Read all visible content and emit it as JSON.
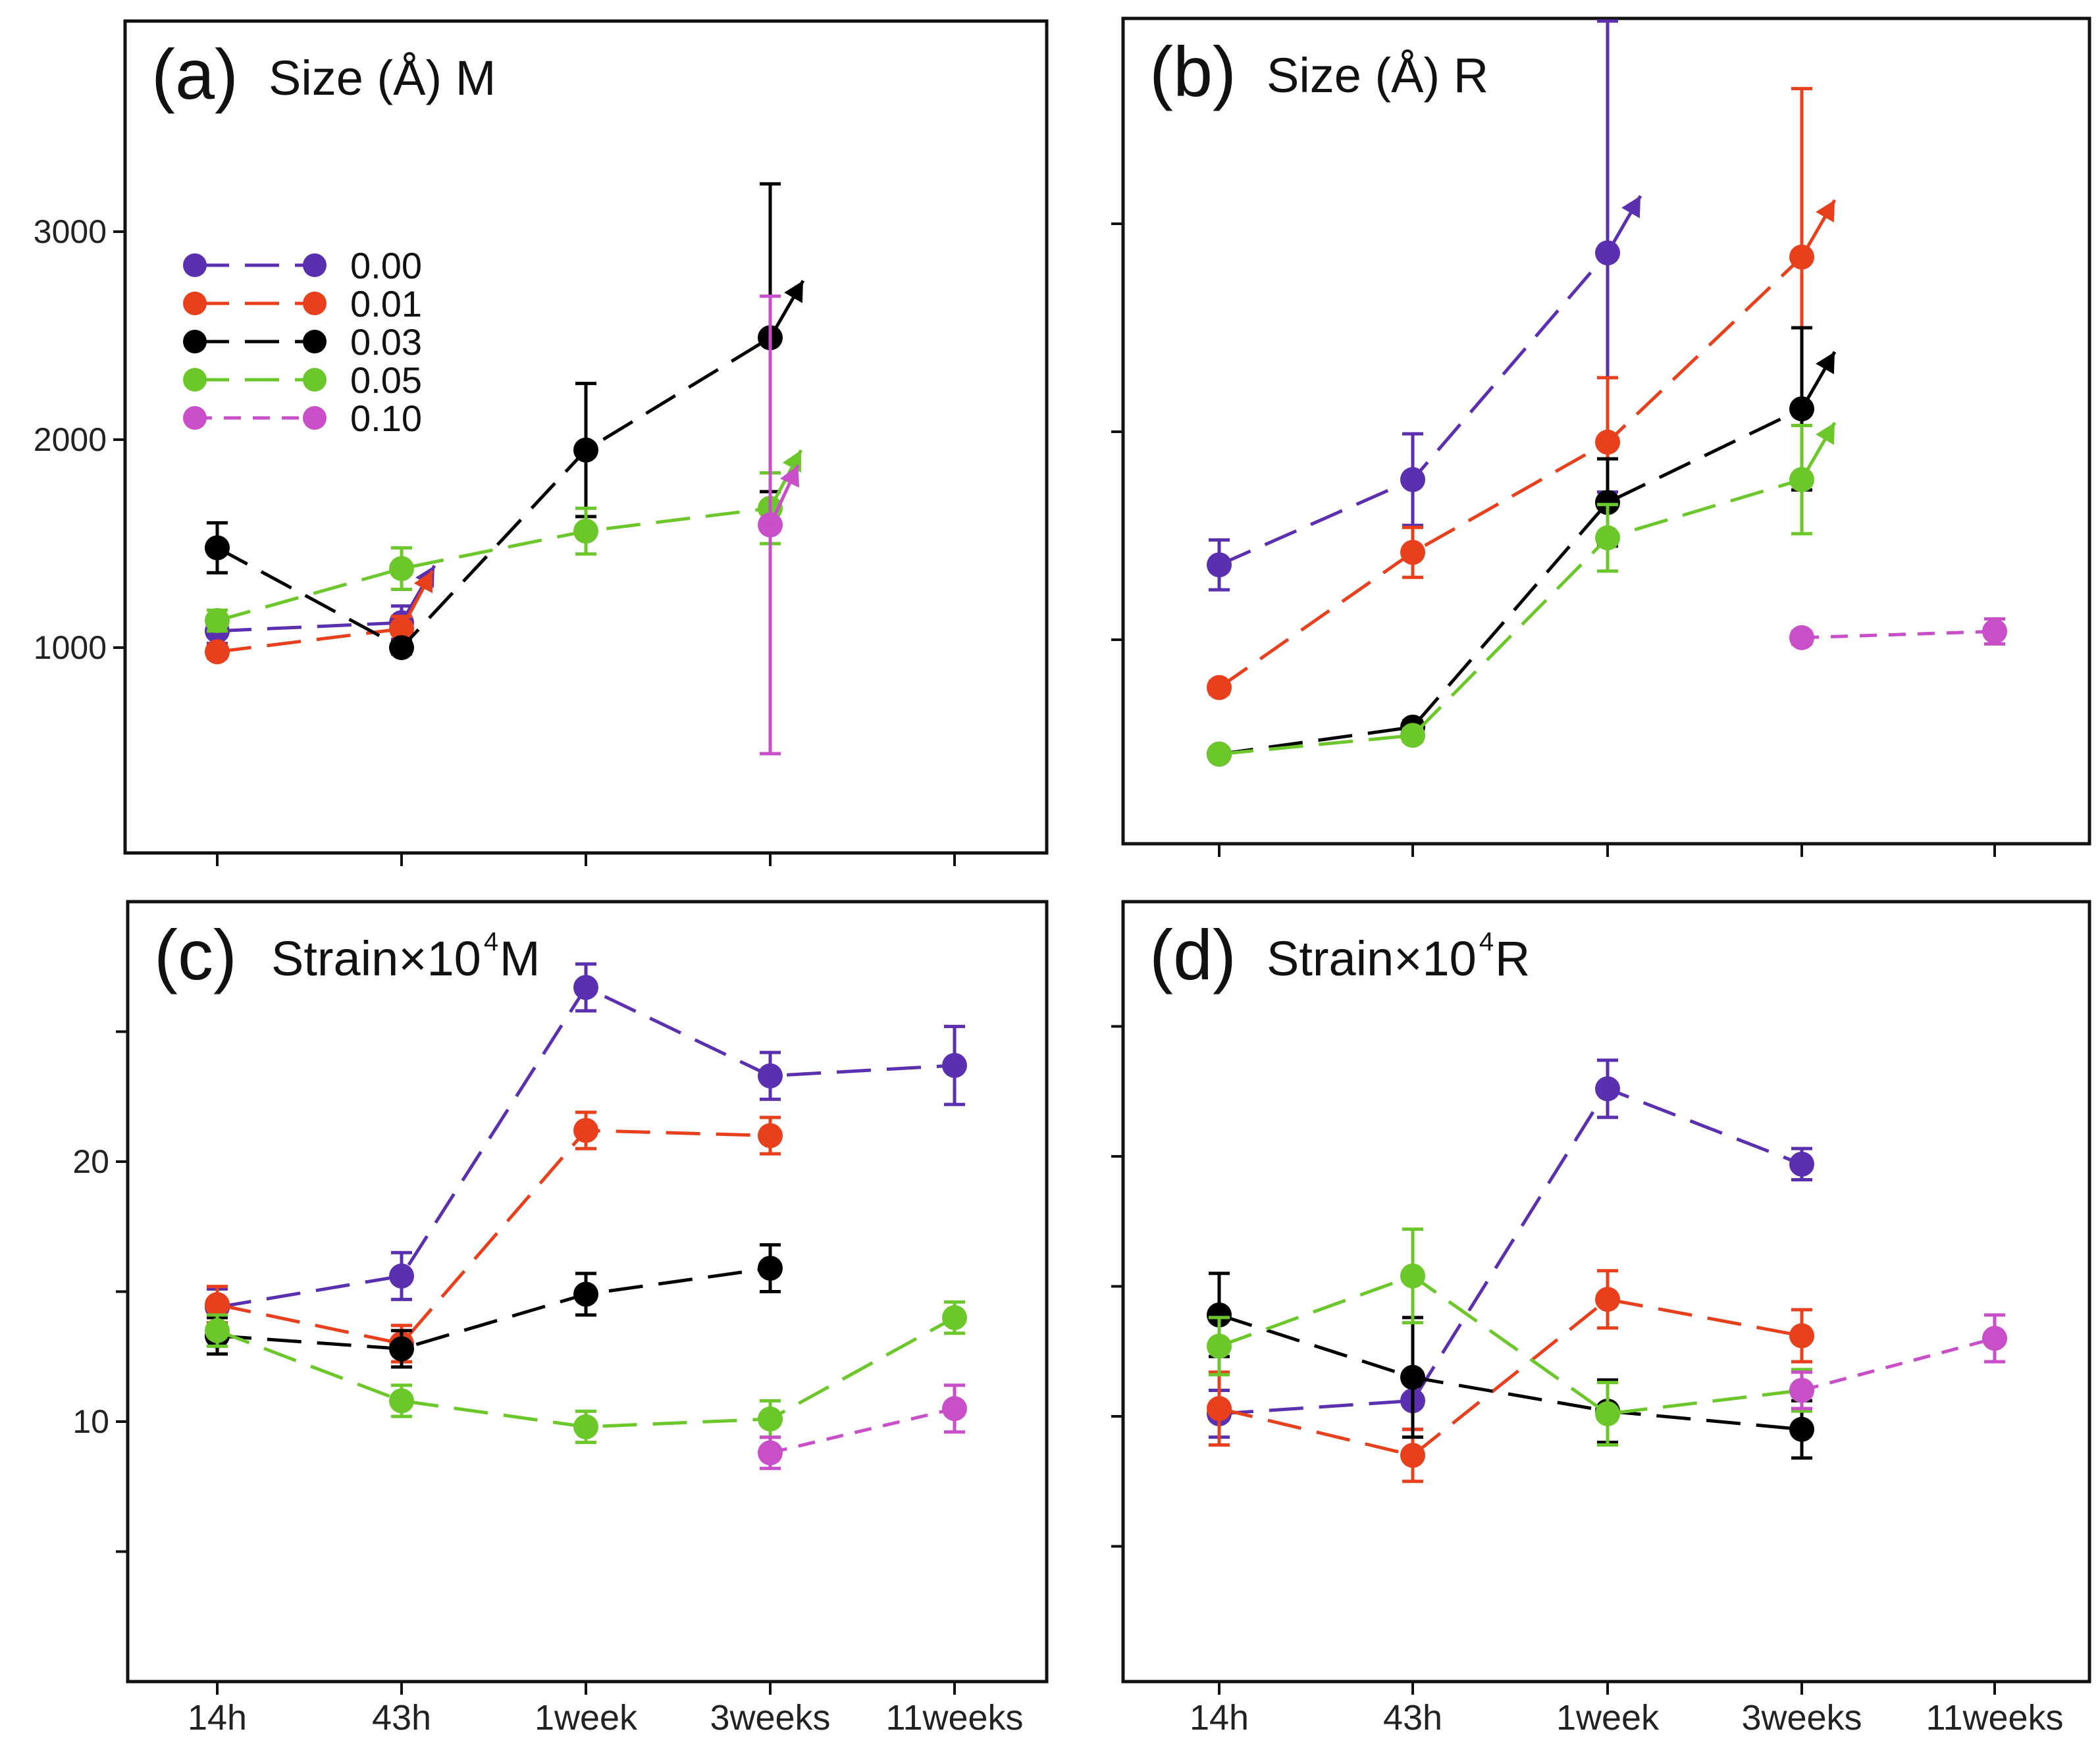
{
  "chart_data": {
    "type": "line",
    "x_categories": [
      "14h",
      "43h",
      "1week",
      "3weeks",
      "11weeks"
    ],
    "legend": {
      "placement": "top-left of panel (a)",
      "entries": [
        {
          "label": "0.00",
          "color": "#5a30b0",
          "dash": "long"
        },
        {
          "label": "0.01",
          "color": "#e8401c",
          "dash": "long"
        },
        {
          "label": "0.03",
          "color": "#000000",
          "dash": "long"
        },
        {
          "label": "0.05",
          "color": "#6cc72a",
          "dash": "long"
        },
        {
          "label": "0.10",
          "color": "#c84fc8",
          "dash": "short"
        }
      ]
    },
    "panels": [
      {
        "id": "a",
        "letter": "(a)",
        "title": "Size (Å) M",
        "ylim": [
          0,
          4000
        ],
        "yticks": [
          1000,
          2000,
          3000
        ],
        "ytick_labels": [
          "1000",
          "2000",
          "3000"
        ],
        "series": [
          {
            "name": "0.00",
            "color": "#5a30b0",
            "x": [
              0,
              1
            ],
            "y": [
              1080,
              1120
            ],
            "err": [
              60,
              80
            ],
            "arrow_from": 1,
            "arrow_angle": -60
          },
          {
            "name": "0.01",
            "color": "#e8401c",
            "x": [
              0,
              1
            ],
            "y": [
              980,
              1090
            ],
            "err": [
              30,
              60
            ],
            "arrow_from": 1,
            "arrow_angle": -62
          },
          {
            "name": "0.03",
            "color": "#000000",
            "x": [
              0,
              1,
              2,
              3
            ],
            "y": [
              1480,
              1000,
              1950,
              2490
            ],
            "err": [
              120,
              30,
              320,
              740
            ],
            "arrow_from": 3,
            "arrow_angle": -60
          },
          {
            "name": "0.05",
            "color": "#6cc72a",
            "x": [
              0,
              1,
              2,
              3
            ],
            "y": [
              1130,
              1380,
              1560,
              1670
            ],
            "err": [
              50,
              100,
              110,
              170
            ],
            "arrow_from": 3,
            "arrow_angle": -62
          },
          {
            "name": "0.10",
            "color": "#c84fc8",
            "x": [
              3
            ],
            "y": [
              1590
            ],
            "err": [
              1100
            ],
            "arrow_from": 3,
            "arrow_angle": -65
          }
        ]
      },
      {
        "id": "b",
        "letter": "(b)",
        "title": "Size (Å) R",
        "ylim": [
          0,
          4000
        ],
        "yticks": [
          1000,
          2000,
          3000
        ],
        "ytick_labels": [],
        "series": [
          {
            "name": "0.00",
            "color": "#5a30b0",
            "x": [
              0,
              1,
              2
            ],
            "y": [
              1360,
              1770,
              2860
            ],
            "err": [
              120,
              220,
              1150
            ],
            "arrow_from": 2,
            "arrow_angle": -60
          },
          {
            "name": "0.01",
            "color": "#e8401c",
            "x": [
              0,
              1,
              2,
              3
            ],
            "y": [
              770,
              1420,
              1950,
              2840
            ],
            "err": [
              30,
              120,
              310,
              810
            ],
            "arrow_from": 3,
            "arrow_angle": -60
          },
          {
            "name": "0.03",
            "color": "#000000",
            "x": [
              0,
              1,
              2,
              3
            ],
            "y": [
              450,
              580,
              1660,
              2110
            ],
            "err": [
              20,
              30,
              210,
              390
            ],
            "arrow_from": 3,
            "arrow_angle": -60
          },
          {
            "name": "0.05",
            "color": "#6cc72a",
            "x": [
              0,
              1,
              2,
              3
            ],
            "y": [
              450,
              540,
              1490,
              1770
            ],
            "err": [
              20,
              30,
              160,
              260
            ],
            "arrow_from": 3,
            "arrow_angle": -60
          },
          {
            "name": "0.10",
            "color": "#c84fc8",
            "x": [
              3,
              4
            ],
            "y": [
              1010,
              1040
            ],
            "err": [
              30,
              60
            ]
          }
        ]
      },
      {
        "id": "c",
        "letter": "(c)",
        "title": "Strain×10",
        "title_sup": "4",
        "title_suffix": " M",
        "ylim": [
          0,
          30
        ],
        "yticks": [
          5,
          10,
          15,
          20,
          25
        ],
        "ytick_labels": [
          "",
          "10",
          "",
          "20",
          ""
        ],
        "series": [
          {
            "name": "0.00",
            "color": "#5a30b0",
            "x": [
              0,
              1,
              2,
              3,
              4
            ],
            "y": [
              14.4,
              15.6,
              26.7,
              23.3,
              23.7
            ],
            "err": [
              0.7,
              0.9,
              0.9,
              0.9,
              1.5
            ]
          },
          {
            "name": "0.01",
            "color": "#e8401c",
            "x": [
              0,
              1,
              2,
              3
            ],
            "y": [
              14.5,
              13.0,
              21.2,
              21.0
            ],
            "err": [
              0.7,
              0.7,
              0.7,
              0.7
            ]
          },
          {
            "name": "0.03",
            "color": "#000000",
            "x": [
              0,
              1,
              2,
              3
            ],
            "y": [
              13.3,
              12.8,
              14.9,
              15.9
            ],
            "err": [
              0.7,
              0.7,
              0.8,
              0.9
            ]
          },
          {
            "name": "0.05",
            "color": "#6cc72a",
            "x": [
              0,
              1,
              2,
              3,
              4
            ],
            "y": [
              13.5,
              10.8,
              9.8,
              10.1,
              14.0
            ],
            "err": [
              0.6,
              0.6,
              0.6,
              0.7,
              0.6
            ]
          },
          {
            "name": "0.10",
            "color": "#c84fc8",
            "x": [
              3,
              4
            ],
            "y": [
              8.8,
              10.5
            ],
            "err": [
              0.6,
              0.9
            ]
          }
        ]
      },
      {
        "id": "d",
        "letter": "(d)",
        "title": "Strain×10",
        "title_sup": "4",
        "title_suffix": " R",
        "ylim": [
          0,
          30
        ],
        "yticks": [
          5,
          10,
          15,
          20,
          25
        ],
        "ytick_labels": [],
        "series": [
          {
            "name": "0.00",
            "color": "#5a30b0",
            "x": [
              0,
              1,
              2,
              3
            ],
            "y": [
              10.1,
              10.6,
              22.6,
              19.7
            ],
            "err": [
              0.9,
              1.1,
              1.1,
              0.6
            ]
          },
          {
            "name": "0.01",
            "color": "#e8401c",
            "x": [
              0,
              1,
              2,
              3
            ],
            "y": [
              10.3,
              8.5,
              14.5,
              13.1
            ],
            "err": [
              1.4,
              1.0,
              1.1,
              1.0
            ]
          },
          {
            "name": "0.03",
            "color": "#000000",
            "x": [
              0,
              1,
              2,
              3
            ],
            "y": [
              13.9,
              11.5,
              10.2,
              9.5
            ],
            "err": [
              1.6,
              2.3,
              1.2,
              1.1
            ]
          },
          {
            "name": "0.05",
            "color": "#6cc72a",
            "x": [
              0,
              1,
              2,
              3
            ],
            "y": [
              12.7,
              15.4,
              10.1,
              11.0
            ],
            "err": [
              1.1,
              1.8,
              1.2,
              0.8
            ]
          },
          {
            "name": "0.10",
            "color": "#c84fc8",
            "x": [
              3,
              4
            ],
            "y": [
              11.0,
              13.0
            ],
            "err": [
              0.7,
              0.9
            ]
          }
        ]
      }
    ]
  }
}
